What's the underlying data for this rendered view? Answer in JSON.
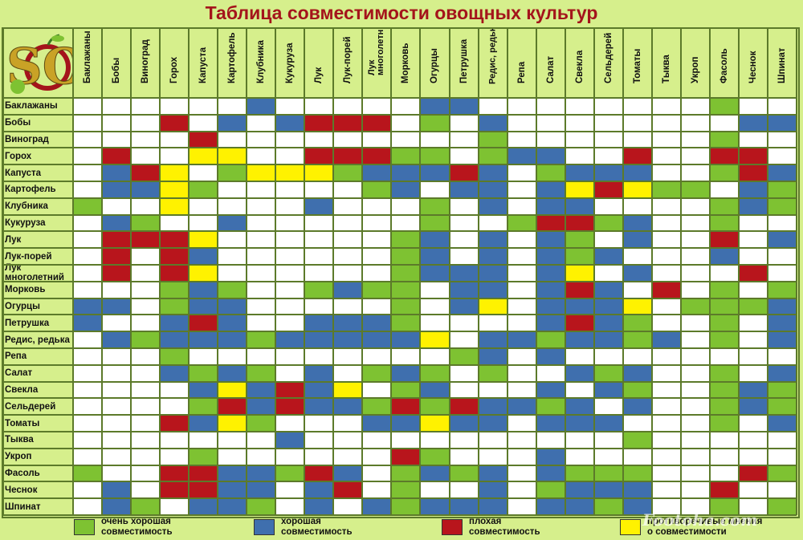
{
  "title": "Таблица совместимости овощных культур",
  "logo": {
    "letters": "SO"
  },
  "colors": {
    "very_good": "#7ec232",
    "good": "#3f6fae",
    "bad": "#b8151c",
    "contradictory": "#fff200",
    "none": "#ffffff"
  },
  "columns": [
    "Баклажаны",
    "Бобы",
    "Виноград",
    "Горох",
    "Капуста",
    "Картофель",
    "Клубника",
    "Кукуруза",
    "Лук",
    "Лук-порей",
    "Лук многолетний",
    "Морковь",
    "Огурцы",
    "Петрушка",
    "Редис, редька",
    "Репа",
    "Салат",
    "Свекла",
    "Сельдерей",
    "Томаты",
    "Тыква",
    "Укроп",
    "Фасоль",
    "Чеснок",
    "Шпинат"
  ],
  "rows": [
    "Баклажаны",
    "Бобы",
    "Виноград",
    "Горох",
    "Капуста",
    "Картофель",
    "Клубника",
    "Кукуруза",
    "Лук",
    "Лук-порей",
    "Лук многолетний",
    "Морковь",
    "Огурцы",
    "Петрушка",
    "Редис, редька",
    "Репа",
    "Салат",
    "Свекла",
    "Сельдерей",
    "Томаты",
    "Тыква",
    "Укроп",
    "Фасоль",
    "Чеснок",
    "Шпинат"
  ],
  "matrix": [
    "wwwwwwbwwwwwbbwwwwwwwwgww",
    "wwwrwbwbrrrwgwbwwwwwwwwbb",
    "wwwwrwwwwwwwwwgwwwwwwwgww",
    "wrwwyywwrrrggwgbbwwrwwrrw",
    "wbrywgyyygbbbrbwgbbbwwgrb",
    "wbbygwwwwwgbwbbwbyryggwbg",
    "gwwywwwwbwwwgwbwbbwwwwgbg",
    "wbgwwbwwwwwwgwwgrrgbwwgww",
    "wrrrywwwwwwgbwbwbgwbwwrwb",
    "wrwrbwwwwwwgbwbwbgbwwwbww",
    "wrwrywwwwwwgbbbwbywbwwwrw",
    "wwwgbgwwgbggwbbwbrbwrwgwg",
    "bbwgbbwwwwwgwbywbbbywgggb",
    "bwwbrbwwbbbgwwwwbrbgwwgwb",
    "wbgbbbgbbbbbywbbgbbgbwgwb",
    "wwwgwwwwwwwwwgbwbwwwwwwww",
    "wwwbgbgwbwgbgwgwwbgbwwgwb",
    "wwwwbybrbywgbwwwbwbgwwgbg",
    "wwwwgrbrbbgrgrbbgbwbwwgbg",
    "wwwrbygwwwbbybbwbbbwwwgwb",
    "wwwwwwwbwwwwwwwwwwwgwwwww",
    "wwwwgwwwwwwrgwwwbwwwwwwww",
    "gwwrrbbgrbwgbgbwbgggwwwrg",
    "wbwrrbbwbrwgwwbwgbbbwwrww",
    "wbgwbbgwbwbgbbbwbbgbwwgwg"
  ],
  "legend": [
    {
      "key": "very_good",
      "text": "очень хорошая\nсовместимость"
    },
    {
      "key": "good",
      "text": "хорошая\nсовместимость"
    },
    {
      "key": "bad",
      "text": "плохая\nсовместимость"
    },
    {
      "key": "contradictory",
      "text": "противоречивые мнения\nо совместимости"
    }
  ]
}
